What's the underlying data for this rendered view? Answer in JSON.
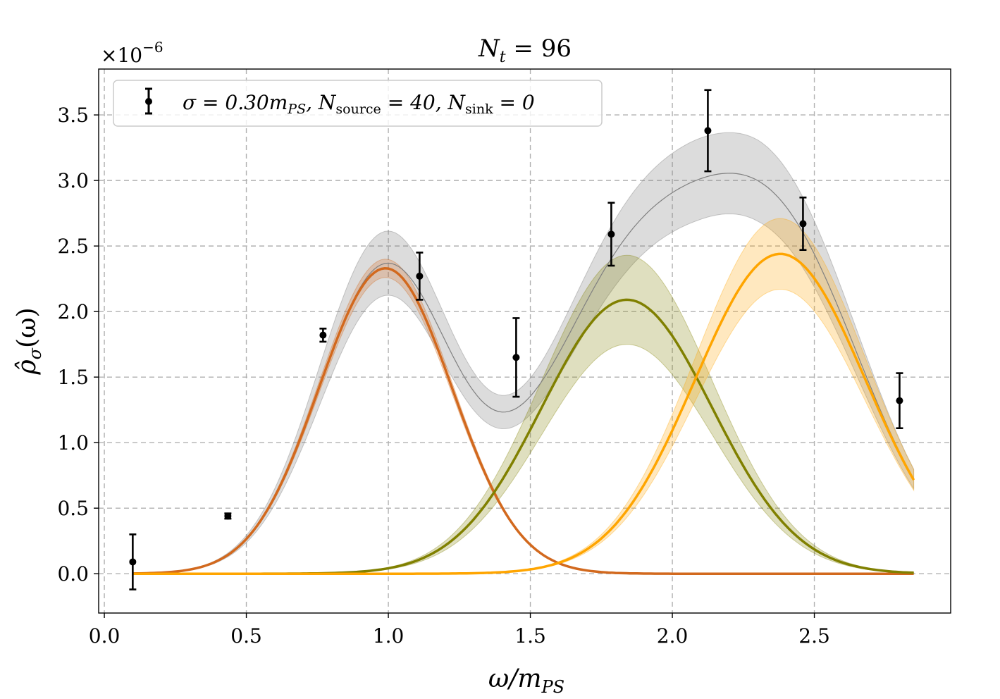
{
  "chart_data": {
    "type": "line",
    "title": "N_t = 96",
    "title_parts": {
      "main": "N",
      "sub": "t",
      "rest": " = 96"
    },
    "xlabel": "ω/m_PS",
    "xlabel_parts": {
      "main": "ω/m",
      "sub": "PS"
    },
    "ylabel": "ρ̂_σ(ω)",
    "ylabel_parts": {
      "hat": "ρ̂",
      "sub": "σ",
      "rest": "(ω)"
    },
    "y_multiplier": "×10^-6",
    "y_multiplier_parts": {
      "base": "×10",
      "exp": "−6"
    },
    "xlim": [
      -0.02,
      2.98
    ],
    "ylim": [
      -0.3,
      3.85
    ],
    "xticks": [
      0.0,
      0.5,
      1.0,
      1.5,
      2.0,
      2.5
    ],
    "xtick_labels": [
      "0.0",
      "0.5",
      "1.0",
      "1.5",
      "2.0",
      "2.5"
    ],
    "yticks": [
      0.0,
      0.5,
      1.0,
      1.5,
      2.0,
      2.5,
      3.0,
      3.5
    ],
    "ytick_labels": [
      "0.0",
      "0.5",
      "1.0",
      "1.5",
      "2.0",
      "2.5",
      "3.0",
      "3.5"
    ],
    "grid": true,
    "legend": {
      "position": "top-left",
      "label": "σ = 0.30m_PS, N_source = 40, N_sink = 0",
      "parts": {
        "sigma": "σ = 0.30m",
        "ps": "PS",
        "n1": ", N",
        "source": "source",
        "n1val": " = 40, N",
        "sink": "sink",
        "n2val": " = 0"
      }
    },
    "x_range_curves": [
      0.1,
      2.85
    ],
    "data_points": {
      "name": "σ = 0.30m_PS, N_source = 40, N_sink = 0",
      "x": [
        0.1,
        0.435,
        0.77,
        1.11,
        1.45,
        1.785,
        2.125,
        2.46,
        2.8
      ],
      "y": [
        0.09,
        0.44,
        1.82,
        2.27,
        1.65,
        2.59,
        3.38,
        2.67,
        1.32
      ],
      "yerr": [
        0.21,
        0.02,
        0.05,
        0.18,
        0.3,
        0.24,
        0.31,
        0.2,
        0.21
      ]
    },
    "series": [
      {
        "name": "Gaussian peak 1",
        "color": "#d2691e",
        "amplitude": 2.33,
        "center": 0.99,
        "width": 0.235,
        "band": 0.07
      },
      {
        "name": "Gaussian peak 2",
        "color": "#808000",
        "amplitude": 2.09,
        "center": 1.84,
        "width": 0.3,
        "band": 0.34
      },
      {
        "name": "Gaussian peak 3",
        "color": "#ffa500",
        "amplitude": 2.44,
        "center": 2.38,
        "width": 0.3,
        "band": 0.27
      },
      {
        "name": "Total fit",
        "color": "#808080",
        "band": 0.31
      }
    ],
    "colors": {
      "grid": "#b0b0b0",
      "points": "#000000"
    }
  }
}
